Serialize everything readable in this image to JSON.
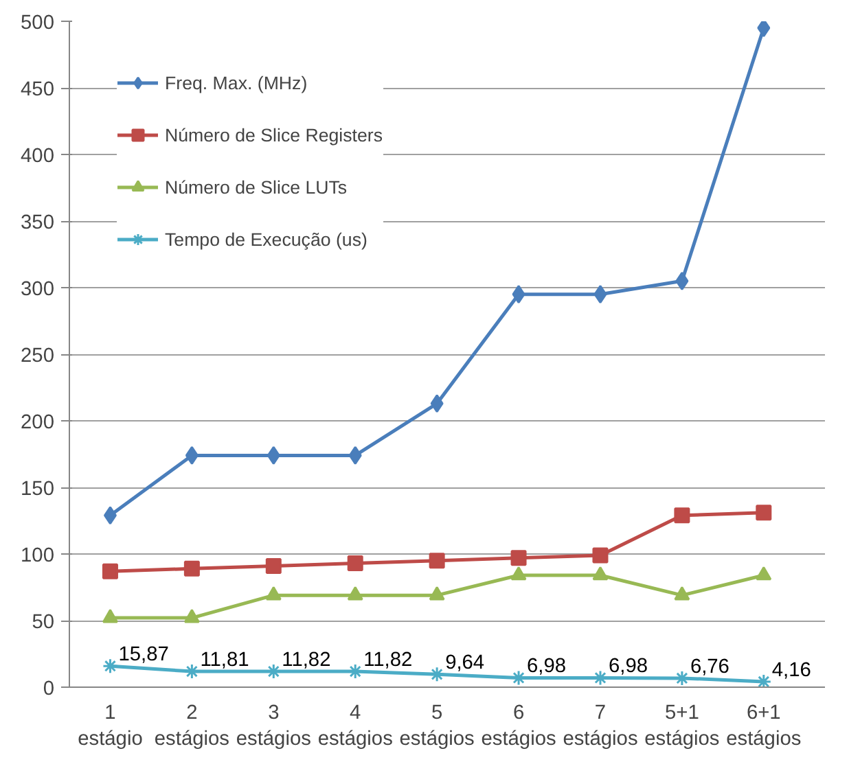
{
  "chart_data": {
    "type": "line",
    "categories": [
      "1\nestágio",
      "2\nestágios",
      "3\nestágios",
      "4\nestágios",
      "5\nestágios",
      "6\nestágios",
      "7\nestágios",
      "5+1\nestágios",
      "6+1\nestágios"
    ],
    "series": [
      {
        "name": "Freq. Max. (MHz)",
        "color": "#4a7ebb",
        "marker": "diamond",
        "values": [
          129,
          174,
          174,
          174,
          213,
          295,
          295,
          305,
          495
        ]
      },
      {
        "name": "Número de Slice Registers",
        "color": "#be4b48",
        "marker": "square",
        "values": [
          87,
          89,
          91,
          93,
          95,
          97,
          99,
          129,
          131
        ]
      },
      {
        "name": "Número de Slice LUTs",
        "color": "#98b954",
        "marker": "triangle",
        "values": [
          52,
          52,
          69,
          69,
          69,
          84,
          84,
          69,
          84
        ]
      },
      {
        "name": "Tempo de Execução (us)",
        "color": "#4bacc6",
        "marker": "cross",
        "values": [
          15.87,
          11.81,
          11.82,
          11.82,
          9.64,
          6.98,
          6.98,
          6.76,
          4.16
        ],
        "value_labels": [
          "15,87",
          "11,81",
          "11,82",
          "11,82",
          "9,64",
          "6,98",
          "6,98",
          "6,76",
          "4,16"
        ]
      }
    ],
    "ylim": [
      0,
      500
    ],
    "yticks": [
      0,
      50,
      100,
      150,
      200,
      250,
      300,
      350,
      400,
      450,
      500
    ],
    "grid": "y",
    "legend": "top left"
  }
}
